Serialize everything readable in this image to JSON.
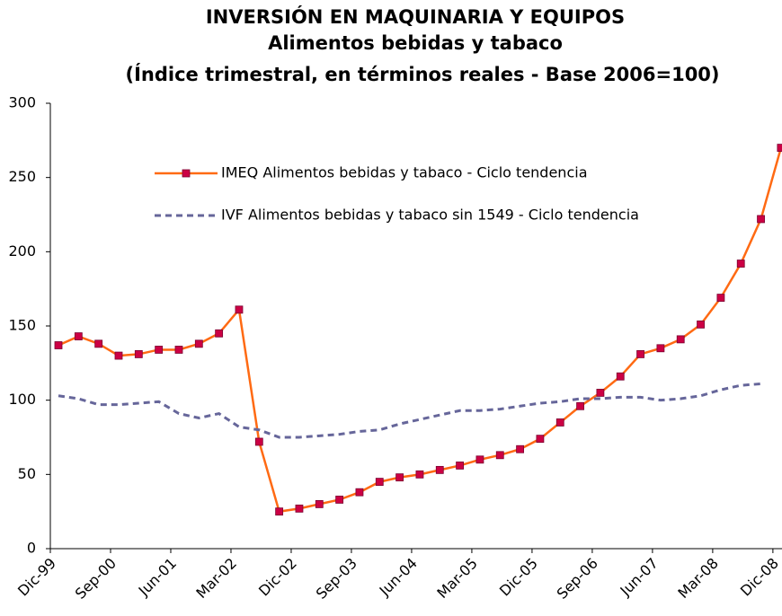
{
  "chart_data": {
    "type": "line",
    "title": "INVERSIÓN EN MAQUINARIA Y EQUIPOS",
    "subtitle": "Alimentos bebidas y tabaco",
    "subtitle2": "(Índice trimestral, en términos reales - Base 2006=100)",
    "categories": [
      "Dic-99",
      null,
      null,
      "Sep-00",
      null,
      null,
      "Jun-01",
      null,
      null,
      "Mar-02",
      null,
      null,
      "Dic-02",
      null,
      null,
      "Sep-03",
      null,
      null,
      "Jun-04",
      null,
      null,
      "Mar-05",
      null,
      null,
      "Dic-05",
      null,
      null,
      "Sep-06",
      null,
      null,
      "Jun-07",
      null,
      null,
      "Mar-08",
      null,
      null,
      "Dic-08"
    ],
    "ylim": [
      0,
      300
    ],
    "yticks": [
      0,
      50,
      100,
      150,
      200,
      250,
      300
    ],
    "grid": false,
    "legend": "top",
    "series": [
      {
        "name": "IMEQ Alimentos bebidas y tabaco - Ciclo tendencia",
        "color": "#ff6a13",
        "marker_color": "#cc0044",
        "values": [
          137,
          143,
          138,
          130,
          131,
          134,
          134,
          138,
          145,
          161,
          72,
          25,
          27,
          30,
          33,
          38,
          45,
          48,
          50,
          53,
          56,
          60,
          63,
          67,
          74,
          85,
          96,
          105,
          116,
          131,
          135,
          141,
          151,
          169,
          192,
          222,
          270
        ]
      },
      {
        "name": "IVF Alimentos bebidas y tabaco sin 1549 - Ciclo tendencia",
        "color": "#66669a",
        "dashed": true,
        "values": [
          103,
          101,
          97,
          97,
          98,
          99,
          91,
          88,
          91,
          82,
          80,
          75,
          75,
          76,
          77,
          79,
          80,
          84,
          87,
          90,
          93,
          93,
          94,
          96,
          98,
          99,
          101,
          101,
          102,
          102,
          100,
          101,
          103,
          107,
          110,
          111,
          null
        ]
      }
    ]
  }
}
